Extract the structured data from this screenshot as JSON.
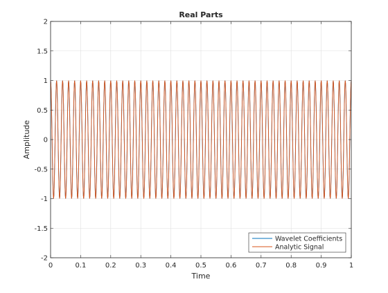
{
  "chart_data": {
    "type": "line",
    "title": "Real Parts",
    "xlabel": "Time",
    "ylabel": "Amplitude",
    "xlim": [
      0,
      1
    ],
    "ylim": [
      -2,
      2
    ],
    "xticks": [
      0,
      0.1,
      0.2,
      0.3,
      0.4,
      0.5,
      0.6,
      0.7,
      0.8,
      0.9,
      1
    ],
    "xtick_labels": [
      "0",
      "0.1",
      "0.2",
      "0.3",
      "0.4",
      "0.5",
      "0.6",
      "0.7",
      "0.8",
      "0.9",
      "1"
    ],
    "yticks": [
      -2,
      -1.5,
      -1,
      -0.5,
      0,
      0.5,
      1,
      1.5,
      2
    ],
    "ytick_labels": [
      "-2",
      "-1.5",
      "-1",
      "-0.5",
      "0",
      "0.5",
      "1",
      "1.5",
      "2"
    ],
    "grid": true,
    "legend_position": "bottom-right",
    "series": [
      {
        "name": "Wavelet Coefficients",
        "color": "#0072bd",
        "function": "cosine",
        "frequency": 50,
        "amplitude": 1,
        "samples": 1000,
        "x_range": [
          0,
          1
        ]
      },
      {
        "name": "Analytic Signal",
        "color": "#d95319",
        "function": "cosine",
        "frequency": 50,
        "amplitude": 1,
        "samples": 1000,
        "x_range": [
          0,
          1
        ]
      }
    ]
  }
}
